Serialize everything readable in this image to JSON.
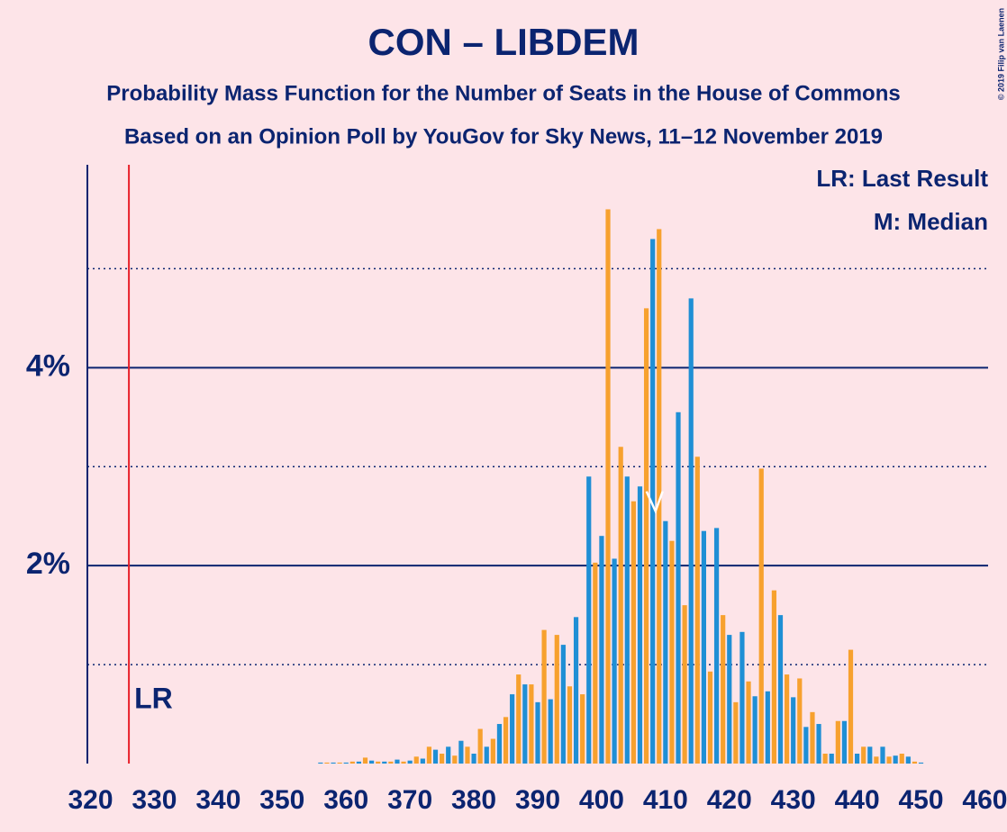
{
  "chart_data": {
    "type": "bar",
    "title": "CON – LIBDEM",
    "subtitle": "Probability Mass Function for the Number of Seats in the House of Commons",
    "subtitle2": "Based on an Opinion Poll by YouGov for Sky News, 11–12 November 2019",
    "legend_lr": "LR: Last Result",
    "legend_m": "M: Median",
    "lr_label": "LR",
    "copyright": "© 2019 Filip van Laenen",
    "last_result": 326,
    "median": 409,
    "colors": [
      "#1f8fd5",
      "#f7a12e"
    ],
    "x": [
      320,
      321,
      322,
      323,
      324,
      325,
      326,
      327,
      328,
      329,
      330,
      331,
      332,
      333,
      334,
      335,
      336,
      337,
      338,
      339,
      340,
      341,
      342,
      343,
      344,
      345,
      346,
      347,
      348,
      349,
      350,
      351,
      352,
      353,
      354,
      355,
      356,
      357,
      358,
      359,
      360,
      361,
      362,
      363,
      364,
      365,
      366,
      367,
      368,
      369,
      370,
      371,
      372,
      373,
      374,
      375,
      376,
      377,
      378,
      379,
      380,
      381,
      382,
      383,
      384,
      385,
      386,
      387,
      388,
      389,
      390,
      391,
      392,
      393,
      394,
      395,
      396,
      397,
      398,
      399,
      400,
      401,
      402,
      403,
      404,
      405,
      406,
      407,
      408,
      409,
      410,
      411,
      412,
      413,
      414,
      415,
      416,
      417,
      418,
      419,
      420,
      421,
      422,
      423,
      424,
      425,
      426,
      427,
      428,
      429,
      430,
      431,
      432,
      433,
      434,
      435,
      436,
      437,
      438,
      439,
      440,
      441,
      442,
      443,
      444,
      445,
      446,
      447,
      448,
      449,
      450,
      451,
      452,
      453,
      454,
      455,
      456,
      457,
      458,
      459,
      460
    ],
    "values": [
      0,
      0,
      0,
      0,
      0,
      0,
      0,
      0,
      0,
      0,
      0,
      0,
      0,
      0,
      0,
      0,
      0,
      0,
      0,
      0,
      0,
      0,
      0,
      0,
      0,
      0,
      0,
      0,
      0,
      0,
      0,
      0,
      0,
      0,
      0,
      0,
      0.01,
      0.01,
      0.01,
      0.01,
      0.01,
      0.02,
      0.02,
      0.06,
      0.03,
      0.02,
      0.02,
      0.02,
      0.04,
      0.02,
      0.03,
      0.07,
      0.05,
      0.17,
      0.14,
      0.1,
      0.17,
      0.08,
      0.23,
      0.17,
      0.1,
      0.35,
      0.17,
      0.25,
      0.4,
      0.47,
      0.7,
      0.9,
      0.8,
      0.8,
      0.62,
      1.35,
      0.65,
      1.3,
      1.2,
      0.78,
      1.48,
      0.7,
      2.9,
      2.03,
      2.3,
      5.6,
      2.07,
      3.2,
      2.9,
      2.65,
      2.8,
      4.6,
      5.3,
      5.4,
      2.45,
      2.25,
      3.55,
      1.6,
      4.7,
      3.1,
      2.35,
      0.93,
      2.38,
      1.5,
      1.3,
      0.62,
      1.33,
      0.83,
      0.68,
      2.98,
      0.73,
      1.75,
      1.5,
      0.9,
      0.67,
      0.86,
      0.37,
      0.52,
      0.4,
      0.1,
      0.1,
      0.43,
      0.43,
      1.15,
      0.1,
      0.17,
      0.17,
      0.07,
      0.17,
      0.07,
      0.08,
      0.1,
      0.07,
      0.02,
      0.01,
      0,
      0,
      0,
      0,
      0,
      0,
      0,
      0,
      0,
      0
    ],
    "xlim": [
      319.5,
      460.5
    ],
    "xticks": [
      320,
      330,
      340,
      350,
      360,
      370,
      380,
      390,
      400,
      410,
      420,
      430,
      440,
      450,
      460
    ],
    "ylim": [
      0,
      6.05
    ],
    "yticks": [
      {
        "value": 2,
        "label": "2%"
      },
      {
        "value": 4,
        "label": "4%"
      }
    ],
    "minor_yticks": [
      1,
      3,
      5
    ]
  }
}
